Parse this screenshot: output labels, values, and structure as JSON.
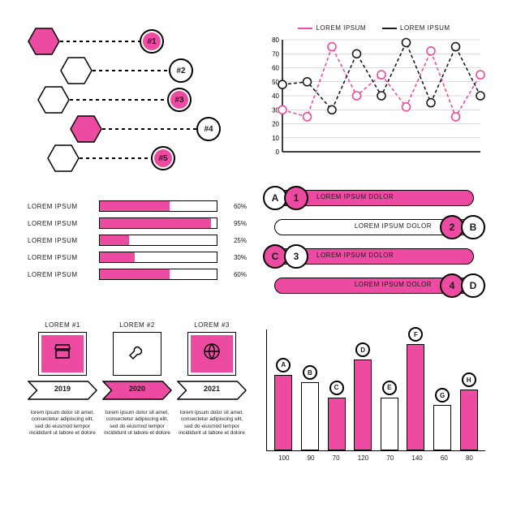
{
  "colors": {
    "pink": "#ec4ba1",
    "pink_light": "#f59ec9",
    "black": "#1a1a1a",
    "white": "#ffffff",
    "gray": "#dddddd"
  },
  "hex_steps": {
    "rows": [
      {
        "icon": "lightbulb",
        "rank": "#1",
        "offset": 0,
        "connector": 98,
        "hex_fill": "#ec4ba1",
        "circ_fill": "#ec4ba1"
      },
      {
        "icon": "briefcase",
        "rank": "#2",
        "offset": 40,
        "connector": 94,
        "hex_fill": "#ffffff",
        "circ_fill": "#ffffff"
      },
      {
        "icon": "search",
        "rank": "#3",
        "offset": 12,
        "connector": 120,
        "hex_fill": "#ffffff",
        "circ_fill": "#ec4ba1"
      },
      {
        "icon": "puzzle",
        "rank": "#4",
        "offset": 52,
        "connector": 116,
        "hex_fill": "#ec4ba1",
        "circ_fill": "#ffffff"
      },
      {
        "icon": "diamond",
        "rank": "#5",
        "offset": 24,
        "connector": 88,
        "hex_fill": "#ffffff",
        "circ_fill": "#ec4ba1"
      }
    ]
  },
  "line_chart": {
    "legend": [
      {
        "label": "Lorem ipsum",
        "color": "#ec4ba1"
      },
      {
        "label": "Lorem ipsum",
        "color": "#1a1a1a"
      }
    ],
    "y_ticks": [
      0,
      10,
      20,
      30,
      40,
      50,
      60,
      70,
      80
    ],
    "ymax": 80,
    "series_pink": [
      30,
      25,
      75,
      40,
      55,
      32,
      72,
      25,
      55
    ],
    "series_black": [
      48,
      50,
      30,
      70,
      40,
      78,
      35,
      75,
      40
    ],
    "marker_radius": 5,
    "grid_color": "#bbbbbb"
  },
  "progress": {
    "items": [
      {
        "label": "Lorem ipsum",
        "value": 60
      },
      {
        "label": "Lorem ipsum",
        "value": 95
      },
      {
        "label": "Lorem ipsum",
        "value": 25
      },
      {
        "label": "Lorem ipsum",
        "value": 30
      },
      {
        "label": "Lorem ipsum",
        "value": 60
      }
    ],
    "fill_color": "#ec4ba1"
  },
  "letter_bars": {
    "rows": [
      {
        "letter": "A",
        "num": "1",
        "text": "Lorem ipsum dolor",
        "side": "left",
        "pink_on": "num",
        "bar_fill": "#ec4ba1"
      },
      {
        "letter": "B",
        "num": "2",
        "text": "Lorem ipsum dolor",
        "side": "right",
        "pink_on": "num",
        "bar_fill": "#ffffff"
      },
      {
        "letter": "C",
        "num": "3",
        "text": "Lorem ipsum dolor",
        "side": "left",
        "pink_on": "letter",
        "bar_fill": "#ec4ba1"
      },
      {
        "letter": "D",
        "num": "4",
        "text": "Lorem ipsum dolor",
        "side": "right",
        "pink_on": "num",
        "bar_fill": "#ec4ba1"
      }
    ]
  },
  "timeline": {
    "cols": [
      {
        "head": "Lorem #1",
        "icon": "store",
        "year": "2019",
        "box_fill": "#ec4ba1",
        "year_fill": "#ffffff"
      },
      {
        "head": "Lorem #2",
        "icon": "wrench",
        "year": "2020",
        "box_fill": "#ffffff",
        "year_fill": "#ec4ba1"
      },
      {
        "head": "Lorem #3",
        "icon": "globe",
        "year": "2021",
        "box_fill": "#ec4ba1",
        "year_fill": "#ffffff"
      }
    ],
    "caption": "Lorem ipsum dolor sit amet, consectetur adipiscing elit, sed do eiusmod tempor incididunt ut labore et dolore"
  },
  "bar_chart": {
    "ymax": 150,
    "bars": [
      {
        "cap": "A",
        "value": 100,
        "fill": "#ec4ba1"
      },
      {
        "cap": "B",
        "value": 90,
        "fill": "#ffffff"
      },
      {
        "cap": "C",
        "value": 70,
        "fill": "#ec4ba1"
      },
      {
        "cap": "D",
        "value": 120,
        "fill": "#ec4ba1"
      },
      {
        "cap": "E",
        "value": 70,
        "fill": "#ffffff"
      },
      {
        "cap": "F",
        "value": 140,
        "fill": "#ec4ba1"
      },
      {
        "cap": "G",
        "value": 60,
        "fill": "#ffffff"
      },
      {
        "cap": "H",
        "value": 80,
        "fill": "#ec4ba1"
      }
    ],
    "x_labels": [
      "100",
      "90",
      "70",
      "120",
      "70",
      "140",
      "60",
      "80"
    ]
  }
}
